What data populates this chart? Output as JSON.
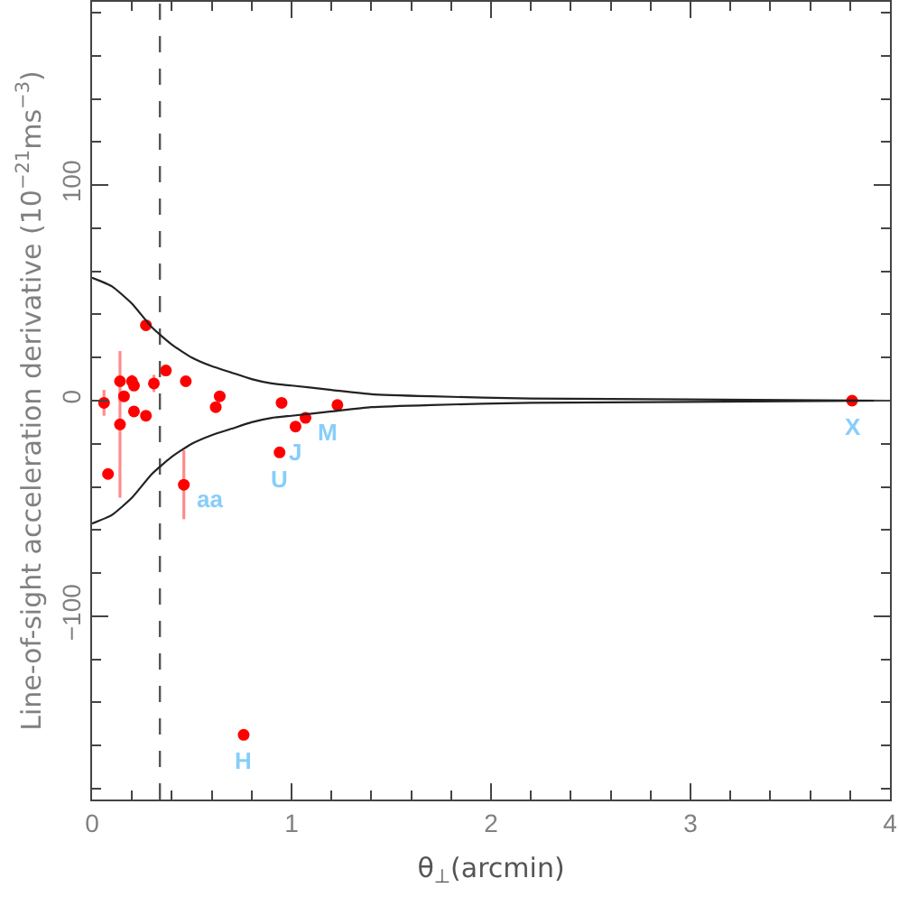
{
  "chart_data": {
    "type": "scatter",
    "xlabel": "θ$_{⊥}$(arcmin)",
    "ylabel": "Line-of-sight acceleration derivative (10$^{−21}$ms$^{−3}$)",
    "xlim": [
      0,
      4
    ],
    "ylim": [
      -185,
      185
    ],
    "xticks": [
      0,
      {
        "value": 0.2,
        "label": null
      },
      {
        "value": 0.4,
        "label": null
      },
      {
        "value": 0.6,
        "label": null
      },
      {
        "value": 0.8,
        "label": null
      },
      1,
      {
        "value": 1.2,
        "label": null
      },
      {
        "value": 1.4,
        "label": null
      },
      {
        "value": 1.6,
        "label": null
      },
      {
        "value": 1.8,
        "label": null
      },
      2,
      {
        "value": 2.2,
        "label": null
      },
      {
        "value": 2.4,
        "label": null
      },
      {
        "value": 2.6,
        "label": null
      },
      {
        "value": 2.8,
        "label": null
      },
      3,
      {
        "value": 3.2,
        "label": null
      },
      {
        "value": 3.4,
        "label": null
      },
      {
        "value": 3.6,
        "label": null
      },
      {
        "value": 3.8,
        "label": null
      },
      4
    ],
    "yticks": [
      {
        "value": -180,
        "label": null
      },
      {
        "value": -160,
        "label": null
      },
      {
        "value": -140,
        "label": null
      },
      {
        "value": -120,
        "label": null
      },
      {
        "value": -100,
        "label": "−100"
      },
      {
        "value": -80,
        "label": null
      },
      {
        "value": -60,
        "label": null
      },
      {
        "value": -40,
        "label": null
      },
      {
        "value": -20,
        "label": null
      },
      0,
      {
        "value": 20,
        "label": null
      },
      {
        "value": 40,
        "label": null
      },
      {
        "value": 60,
        "label": null
      },
      {
        "value": 80,
        "label": null
      },
      100,
      {
        "value": 120,
        "label": null
      },
      {
        "value": 140,
        "label": null
      },
      {
        "value": 160,
        "label": null
      },
      {
        "value": 180,
        "label": null
      }
    ],
    "series": [
      {
        "color": "#ff0000",
        "marker": "circle",
        "x": [
          0.06,
          0.08,
          0.14,
          0.14,
          0.16,
          0.2,
          0.21,
          0.21,
          0.27,
          0.27,
          0.31,
          0.37,
          0.47,
          0.46,
          0.62,
          0.64,
          0.95,
          0.94,
          1.02,
          1.07,
          1.23,
          3.81,
          0.76
        ],
        "values": [
          -1,
          -34,
          9,
          -11,
          2,
          9,
          7,
          -5,
          35,
          -7,
          8,
          14,
          9,
          -39,
          -3,
          2,
          -1,
          -24,
          -12,
          -8,
          -2,
          0,
          -155
        ],
        "errors": [
          6,
          null,
          null,
          34,
          null,
          3,
          null,
          null,
          null,
          null,
          4,
          null,
          null,
          16,
          null,
          null,
          null,
          null,
          null,
          null,
          null,
          null,
          null
        ]
      },
      {
        "type": "line",
        "color": "#222222",
        "marker": "none",
        "x": [
          0,
          0.1,
          0.2,
          0.3,
          0.4,
          0.5,
          0.6,
          0.7,
          0.8,
          0.9,
          1.0,
          1.2,
          1.4,
          1.7,
          2.2,
          4.0
        ],
        "values": [
          57,
          53,
          45,
          34,
          26,
          20,
          16,
          13,
          10,
          8,
          7,
          5,
          3,
          2,
          1,
          0
        ]
      },
      {
        "type": "line",
        "color": "#222222",
        "marker": "none",
        "x": [
          0,
          0.1,
          0.2,
          0.3,
          0.4,
          0.5,
          0.6,
          0.7,
          0.8,
          0.9,
          1.0,
          1.2,
          1.4,
          1.7,
          2.2,
          4.0
        ],
        "values": [
          -57,
          -53,
          -45,
          -34,
          -26,
          -20,
          -16,
          -13,
          -10,
          -8,
          -7,
          -5,
          -3,
          -2,
          -1,
          0
        ]
      }
    ],
    "ref_lines": [
      {
        "axis": "x",
        "value": 0.34,
        "line_style": "dashed",
        "color": "#555555"
      }
    ],
    "annotations": [
      {
        "text": "aa",
        "x": 0.46,
        "y": -39
      },
      {
        "text": "U",
        "x": 0.94,
        "y": -24
      },
      {
        "text": "J",
        "x": 1.02,
        "y": -12
      },
      {
        "text": "M",
        "x": 1.07,
        "y": -8
      },
      {
        "text": "X",
        "x": 3.81,
        "y": 0
      },
      {
        "text": "H",
        "x": 0.76,
        "y": -155
      }
    ]
  }
}
